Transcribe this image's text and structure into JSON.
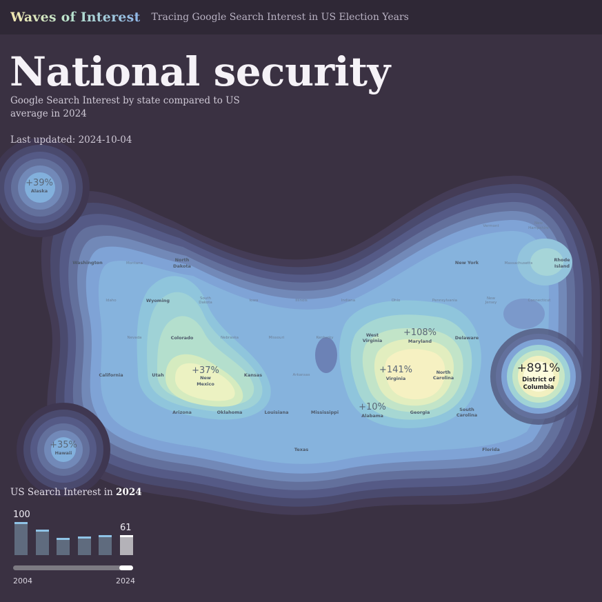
{
  "header": {
    "brand": "Waves of Interest",
    "tagline": "Tracing Google Search Interest in US Election Years"
  },
  "title": "National security",
  "subtitle": "Google Search Interest by state compared to US average in 2024",
  "last_updated": "Last updated: 2024-10-04",
  "map": {
    "highlights": [
      {
        "state": "Alaska",
        "pct": "+39%"
      },
      {
        "state": "Hawaii",
        "pct": "+35%"
      },
      {
        "state_l1": "New",
        "state_l2": "Mexico",
        "pct": "+37%"
      },
      {
        "state": "Maryland",
        "pct": "+108%"
      },
      {
        "state": "Virginia",
        "pct": "+141%"
      },
      {
        "state": "Alabama",
        "pct": "+10%"
      },
      {
        "state_l1": "District of",
        "state_l2": "Columbia",
        "pct": "+891%"
      }
    ],
    "labels": {
      "washington": "Washington",
      "north_dakota_1": "North",
      "north_dakota_2": "Dakota",
      "wyoming": "Wyoming",
      "colorado": "Colorado",
      "utah": "Utah",
      "california": "California",
      "kansas": "Kansas",
      "arizona": "Arizona",
      "oklahoma": "Oklahoma",
      "louisiana": "Louisiana",
      "mississippi": "Mississippi",
      "texas": "Texas",
      "georgia": "Georgia",
      "south_carolina_1": "South",
      "south_carolina_2": "Carolina",
      "florida": "Florida",
      "north_carolina_1": "North",
      "north_carolina_2": "Carolina",
      "delaware": "Delaware",
      "west_virginia_1": "West",
      "west_virginia_2": "Virginia",
      "new_york": "New York",
      "rhode_island_1": "Rhode",
      "rhode_island_2": "Island",
      "new_hampshire_1": "New",
      "new_hampshire_2": "Hampshire",
      "massachusetts": "Massachusetts",
      "connecticut": "Connecticut",
      "ohio": "Ohio",
      "pennsylvania": "Pennsylvania",
      "indiana": "Indiana",
      "illinois": "Illinois",
      "iowa": "Iowa",
      "missouri": "Missouri",
      "arkansas": "Arkansas",
      "nebraska": "Nebraska",
      "idaho": "Idaho",
      "nevada": "Nevada",
      "vermont": "Vermont",
      "montana": "Montana",
      "south_dakota_1": "South",
      "south_dakota_2": "Dakota",
      "new_jersey_1": "New",
      "new_jersey_2": "Jersey",
      "kentucky": "Kentucky"
    }
  },
  "trend": {
    "heading_prefix": "US Search Interest in ",
    "heading_year": "2024",
    "values": [
      100,
      77,
      53,
      57,
      61,
      61
    ],
    "first_label": "100",
    "current_label": "61",
    "start_year": "2004",
    "end_year": "2024"
  },
  "colors": {
    "background": "#3a3142",
    "contour_low": "#4a4a74",
    "contour_mid": "#7fa8de",
    "contour_high": "#fbf4c3"
  }
}
